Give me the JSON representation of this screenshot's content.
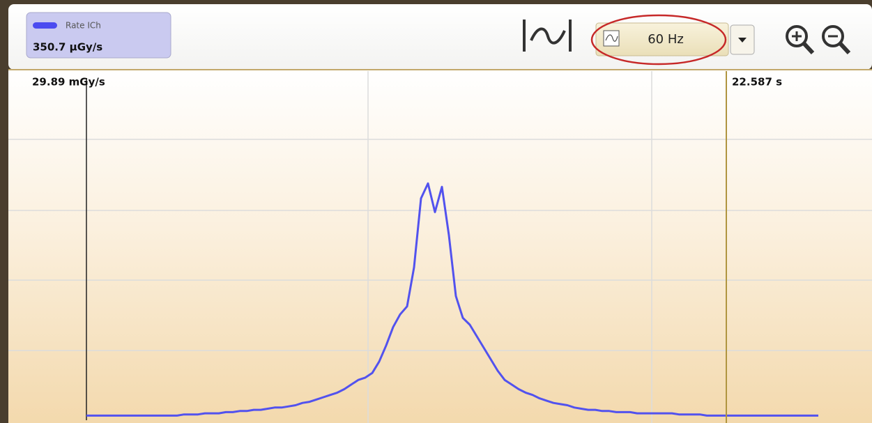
{
  "legend": {
    "name": "Rate ICh",
    "value": "350.7 µGy/s",
    "color": "#4b4bf0"
  },
  "filter": {
    "label": "60 Hz"
  },
  "plot": {
    "y_max": {
      "value": 29.89,
      "label": "29.89 mGy/s"
    },
    "cursor": "22.587 s",
    "trace": {
      "color": "#5252ee",
      "values": [
        0.1,
        0.1,
        0.1,
        0.1,
        0.1,
        0.1,
        0.1,
        0.1,
        0.1,
        0.1,
        0.1,
        0.1,
        0.1,
        0.1,
        0.2,
        0.2,
        0.2,
        0.3,
        0.3,
        0.3,
        0.4,
        0.4,
        0.5,
        0.5,
        0.6,
        0.6,
        0.7,
        0.8,
        0.8,
        0.9,
        1.0,
        1.2,
        1.3,
        1.5,
        1.7,
        1.9,
        2.1,
        2.4,
        2.8,
        3.2,
        3.4,
        3.8,
        4.8,
        6.2,
        7.8,
        8.9,
        9.6,
        13.0,
        19.0,
        20.3,
        17.8,
        20.0,
        15.8,
        10.5,
        8.6,
        8.0,
        7.0,
        6.0,
        5.0,
        4.0,
        3.2,
        2.8,
        2.4,
        2.1,
        1.9,
        1.6,
        1.4,
        1.2,
        1.1,
        1.0,
        0.8,
        0.7,
        0.6,
        0.6,
        0.5,
        0.5,
        0.4,
        0.4,
        0.4,
        0.3,
        0.3,
        0.3,
        0.3,
        0.3,
        0.3,
        0.2,
        0.2,
        0.2,
        0.2,
        0.1,
        0.1,
        0.1,
        0.1,
        0.1,
        0.1,
        0.1,
        0.1,
        0.1,
        0.1,
        0.1,
        0.1,
        0.1,
        0.1,
        0.1,
        0.1,
        0.1
      ]
    }
  }
}
